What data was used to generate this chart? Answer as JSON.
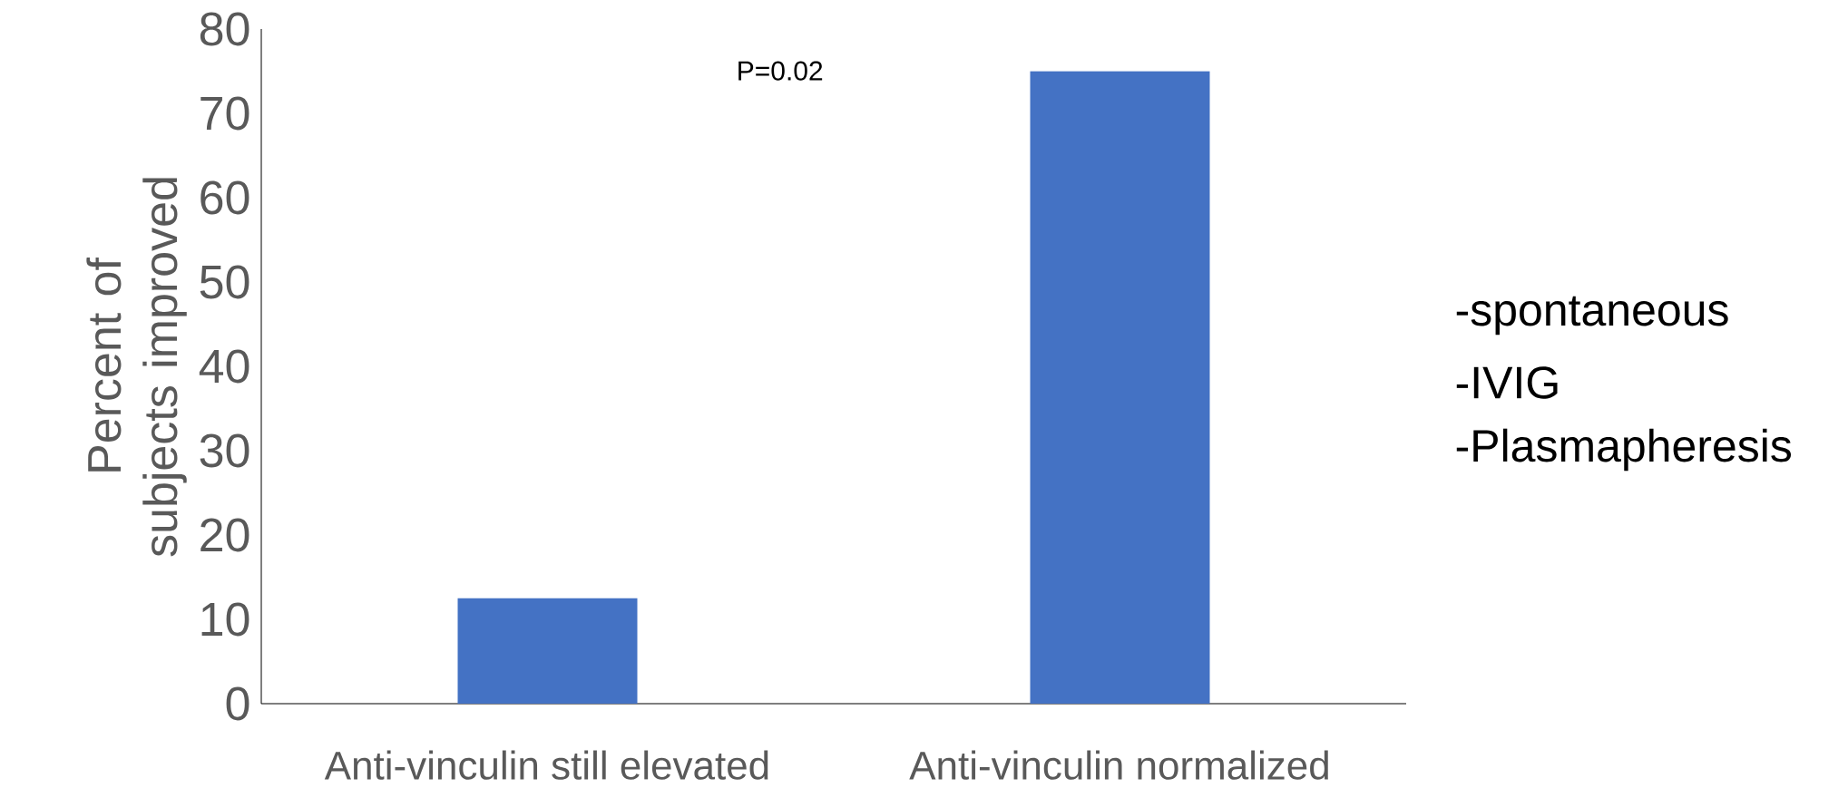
{
  "chart_data": {
    "type": "bar",
    "ylabel": "Percent of subjects improved",
    "categories": [
      "Anti-vinculin still elevated",
      "Anti-vinculin normalized"
    ],
    "values": [
      12.5,
      75
    ],
    "color": "#4472c4",
    "ylim": [
      0,
      80
    ],
    "yticks": [
      0,
      10,
      20,
      30,
      40,
      50,
      60,
      70,
      80
    ],
    "grid": false,
    "annotations": [
      "P=0.02",
      "-spontaneous",
      "-IVIG",
      "-Plasmapheresis"
    ]
  }
}
